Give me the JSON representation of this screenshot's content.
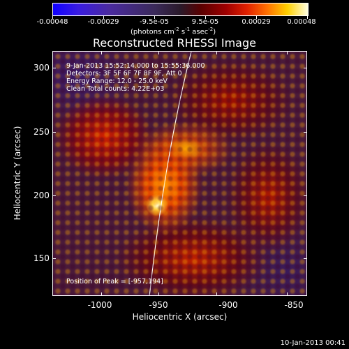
{
  "colorbar": {
    "tick_labels": [
      "-0.00048",
      "-0.00029",
      "-9.5e-05",
      "9.5e-05",
      "0.00029",
      "0.00048"
    ],
    "units_main": "(photons cm",
    "units_exp1": "-2",
    "units_mid1": " s",
    "units_exp2": "-1",
    "units_mid2": " asec",
    "units_exp3": "-2",
    "units_end": ")"
  },
  "title": "Reconstructed RHESSI Image",
  "info": {
    "time_range": "9-Jan-2013 15:52:14.000 to 15:55:36.000",
    "detectors": "Detectors: 3F 5F 6F 7F 8F 9F, Att 0",
    "energy": "Energy Range: 12.0 - 25.0 keV",
    "clean": "Clean     Total counts: 4.22E+03"
  },
  "peak": "Position of Peak = [-957,194]",
  "axes": {
    "x_title": "Heliocentric X (arcsec)",
    "y_title": "Heliocentric Y (arcsec)",
    "x_ticks": [
      "-1000",
      "-950",
      "-900",
      "-850"
    ],
    "y_ticks": [
      "300",
      "250",
      "200",
      "150"
    ]
  },
  "timestamp": "10-Jan-2013 00:41",
  "colors": {
    "background": "#000000",
    "limb_line": "#ffffff"
  }
}
